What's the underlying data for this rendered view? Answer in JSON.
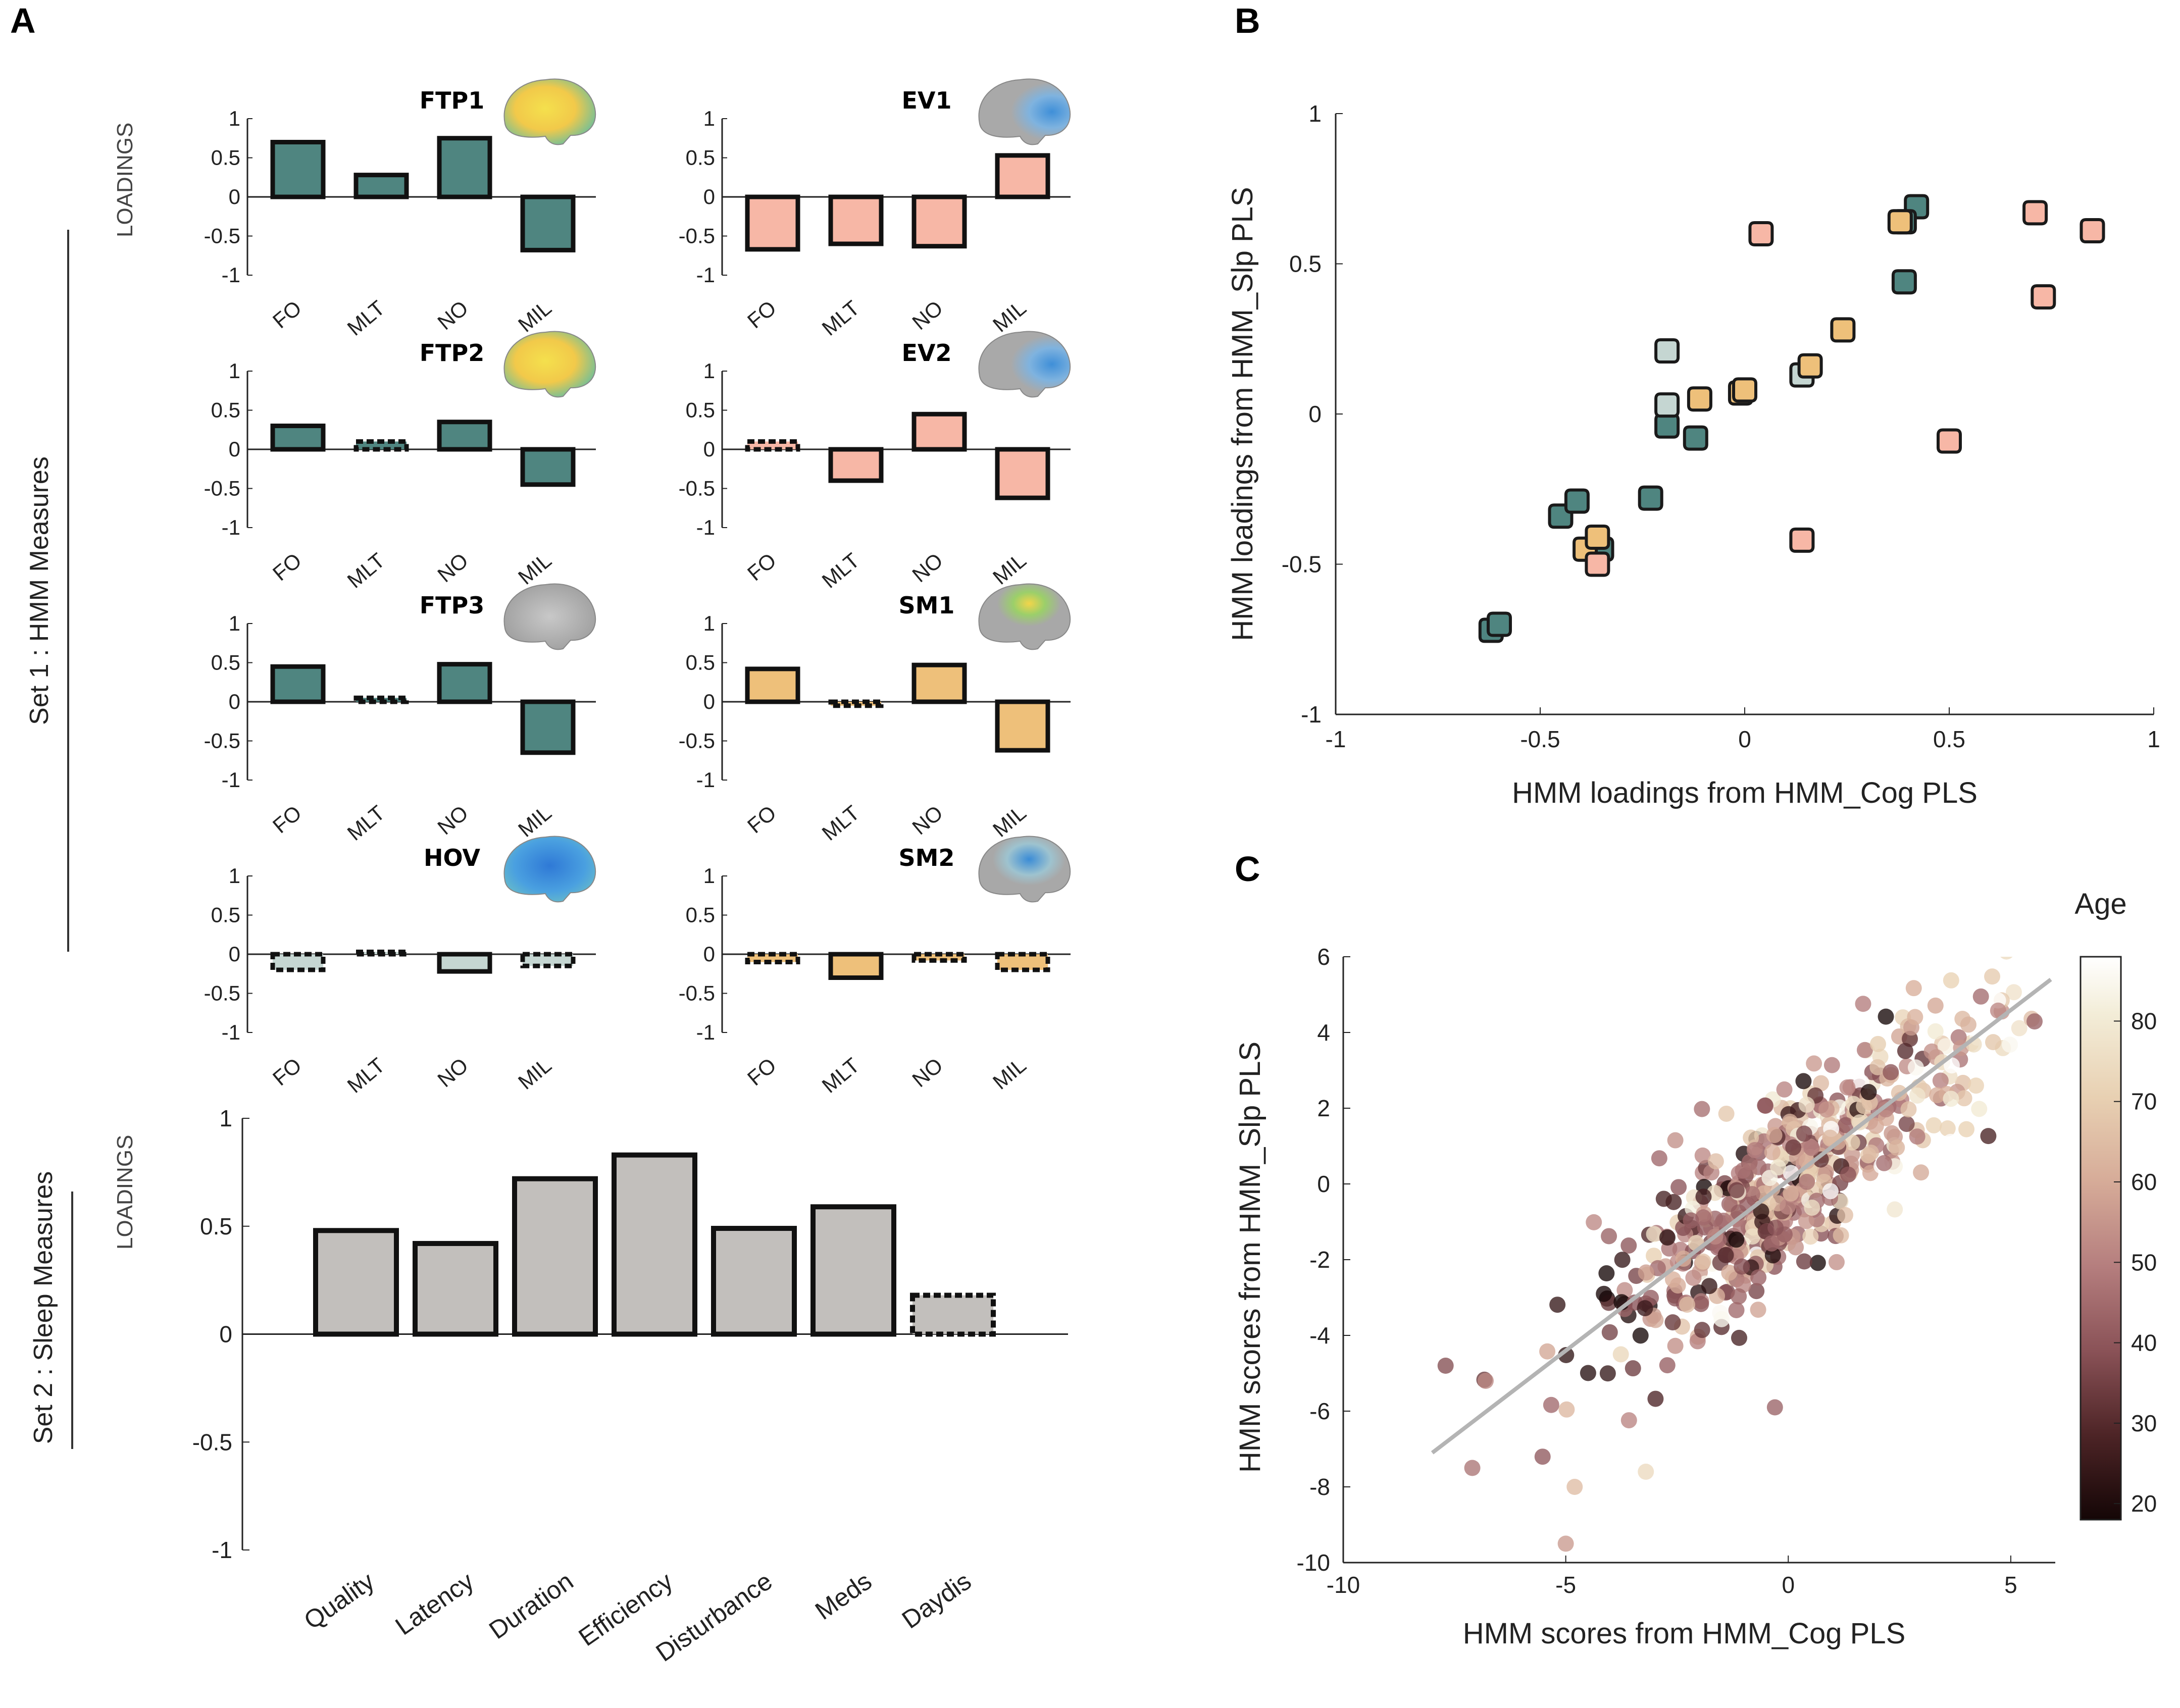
{
  "panel_letters": {
    "a": "A",
    "b": "B",
    "c": "C"
  },
  "colors": {
    "FTP": "#4f8580",
    "EV": "#f7b7a6",
    "SM": "#eec07a",
    "HOV": "#c5d6d2",
    "sleep": "#c2bfbc",
    "edge": "#111111",
    "regression": "#b4b4b4"
  },
  "panel_a": {
    "loadings_label": "LOADINGS",
    "set1_label": "Set 1 : HMM Measures",
    "set2_label": "Set 2 : Sleep Measures",
    "y_ticks": [
      "1",
      "0.5",
      "0",
      "-0.5",
      "-1"
    ],
    "sleep_y_ticks": [
      "1",
      "0.5",
      "0",
      "-0.5",
      "-1"
    ]
  },
  "chart_data": [
    {
      "type": "bar",
      "id": "hmm_small_multiples",
      "categories": [
        "FO",
        "MLT",
        "NO",
        "MIL"
      ],
      "ylim": [
        -1,
        1
      ],
      "panels": [
        {
          "title": "FTP1",
          "group": "FTP",
          "values": [
            0.7,
            0.28,
            0.75,
            -0.68
          ],
          "significant": [
            true,
            true,
            true,
            true
          ]
        },
        {
          "title": "EV1",
          "group": "EV",
          "values": [
            -0.67,
            -0.6,
            -0.63,
            0.53
          ],
          "significant": [
            true,
            true,
            true,
            true
          ]
        },
        {
          "title": "FTP2",
          "group": "FTP",
          "values": [
            0.3,
            0.1,
            0.35,
            -0.45
          ],
          "significant": [
            true,
            false,
            true,
            true
          ]
        },
        {
          "title": "EV2",
          "group": "EV",
          "values": [
            0.1,
            -0.4,
            0.45,
            -0.62
          ],
          "significant": [
            false,
            true,
            true,
            true
          ]
        },
        {
          "title": "FTP3",
          "group": "FTP",
          "values": [
            0.45,
            0.05,
            0.48,
            -0.65
          ],
          "significant": [
            true,
            false,
            true,
            true
          ]
        },
        {
          "title": "SM1",
          "group": "SM",
          "values": [
            0.42,
            -0.05,
            0.47,
            -0.62
          ],
          "significant": [
            true,
            false,
            true,
            true
          ]
        },
        {
          "title": "HOV",
          "group": "HOV",
          "values": [
            -0.2,
            0.03,
            -0.22,
            -0.15
          ],
          "significant": [
            false,
            false,
            true,
            false
          ]
        },
        {
          "title": "SM2",
          "group": "SM",
          "values": [
            -0.1,
            -0.3,
            -0.08,
            -0.2
          ],
          "significant": [
            false,
            true,
            false,
            false
          ]
        }
      ]
    },
    {
      "type": "bar",
      "id": "sleep_loadings",
      "categories": [
        "Quality",
        "Latency",
        "Duration",
        "Efficiency",
        "Disturbance",
        "Meds",
        "Daydis"
      ],
      "values": [
        0.48,
        0.42,
        0.72,
        0.83,
        0.49,
        0.59,
        0.18
      ],
      "significant": [
        true,
        true,
        true,
        true,
        true,
        true,
        false
      ],
      "ylim": [
        -1,
        1
      ]
    },
    {
      "type": "scatter",
      "id": "panel_b",
      "xlabel": "HMM loadings from HMM_Cog PLS",
      "ylabel": "HMM loadings from HMM_Slp PLS",
      "xlim": [
        -1,
        1
      ],
      "ylim": [
        -1,
        1
      ],
      "x_ticks": [
        "-1",
        "-0.5",
        "0",
        "0.5",
        "1"
      ],
      "y_ticks": [
        "1",
        "0.5",
        "0",
        "-0.5",
        "-1"
      ],
      "series": [
        {
          "name": "FTP",
          "points": [
            [
              -0.62,
              -0.72
            ],
            [
              -0.6,
              -0.7
            ],
            [
              -0.45,
              -0.34
            ],
            [
              -0.41,
              -0.29
            ],
            [
              -0.35,
              -0.45
            ],
            [
              -0.23,
              -0.28
            ],
            [
              -0.19,
              -0.04
            ],
            [
              -0.12,
              -0.08
            ],
            [
              0.39,
              0.44
            ],
            [
              0.42,
              0.69
            ],
            [
              0.39,
              0.64
            ]
          ]
        },
        {
          "name": "HOV",
          "points": [
            [
              -0.19,
              0.21
            ],
            [
              -0.19,
              0.03
            ],
            [
              0.14,
              0.13
            ]
          ]
        },
        {
          "name": "SM",
          "points": [
            [
              -0.39,
              -0.45
            ],
            [
              -0.36,
              -0.41
            ],
            [
              -0.11,
              0.05
            ],
            [
              -0.01,
              0.07
            ],
            [
              0.0,
              0.08
            ],
            [
              0.16,
              0.16
            ],
            [
              0.24,
              0.28
            ],
            [
              0.38,
              0.64
            ]
          ]
        },
        {
          "name": "EV",
          "points": [
            [
              -0.36,
              -0.5
            ],
            [
              0.04,
              0.6
            ],
            [
              0.14,
              -0.42
            ],
            [
              0.5,
              -0.09
            ],
            [
              0.71,
              0.67
            ],
            [
              0.73,
              0.39
            ],
            [
              0.85,
              0.61
            ]
          ]
        }
      ]
    },
    {
      "type": "scatter",
      "id": "panel_c",
      "xlabel": "HMM scores from HMM_Cog PLS",
      "ylabel": "HMM scores from HMM_Slp PLS",
      "xlim": [
        -10,
        6
      ],
      "ylim": [
        -10,
        6
      ],
      "x_ticks": [
        "-10",
        "-5",
        "0",
        "5"
      ],
      "y_ticks": [
        "6",
        "4",
        "2",
        "0",
        "-2",
        "-4",
        "-6",
        "-8",
        "-10"
      ],
      "colorbar": {
        "label": "Age",
        "range": [
          18,
          88
        ],
        "ticks": [
          "80",
          "70",
          "60",
          "50",
          "40",
          "30",
          "20"
        ]
      },
      "regression_line": {
        "x": [
          -8,
          5.9
        ],
        "y": [
          -7.1,
          5.4
        ]
      },
      "n_points": 560,
      "seed": 7,
      "noise_sd": 1.2,
      "x_mean": 0.0,
      "x_sd": 2.5,
      "outliers": [
        [
          -7.7,
          -4.8
        ],
        [
          -7.1,
          -7.5
        ],
        [
          -5.0,
          -9.5
        ],
        [
          -4.8,
          -8.0
        ],
        [
          -3.2,
          -7.6
        ],
        [
          -0.3,
          -5.9
        ],
        [
          -6.8,
          -5.2
        ]
      ]
    }
  ]
}
